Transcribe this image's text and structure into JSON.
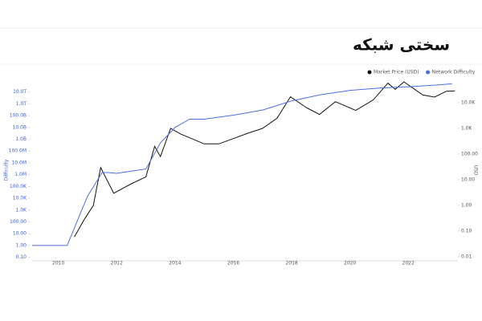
{
  "chart_data": {
    "type": "line",
    "title": "سختی شبکه",
    "ylabel": "Difficulty",
    "y2label": "USD",
    "xlim": [
      2009.1,
      2023.7
    ],
    "xticks": [
      2010,
      2012,
      2014,
      2016,
      2018,
      2020,
      2022
    ],
    "log_y": true,
    "log_y2": true,
    "ylim": [
      0.05,
      100000000000000
    ],
    "yticks": [
      {
        "value": 0.1,
        "label": "0.10"
      },
      {
        "value": 1,
        "label": "1.00"
      },
      {
        "value": 10,
        "label": "10.00"
      },
      {
        "value": 100,
        "label": "100.00"
      },
      {
        "value": 1000,
        "label": "1.0K"
      },
      {
        "value": 10000,
        "label": "10.0K"
      },
      {
        "value": 100000,
        "label": "100.0K"
      },
      {
        "value": 1000000,
        "label": "1.0M"
      },
      {
        "value": 10000000,
        "label": "10.0M"
      },
      {
        "value": 100000000,
        "label": "100.0M"
      },
      {
        "value": 1000000000,
        "label": "1.0B"
      },
      {
        "value": 10000000000,
        "label": "10.0B"
      },
      {
        "value": 100000000000,
        "label": "100.0B"
      },
      {
        "value": 1000000000000,
        "label": "1.0T"
      },
      {
        "value": 10000000000000,
        "label": "10.0T"
      }
    ],
    "y2lim": [
      0.007,
      75000
    ],
    "y2ticks": [
      0.01,
      {
        "value": 0.1,
        "label": "0.10"
      },
      {
        "value": 1,
        "label": "1.00"
      },
      {
        "value": 10,
        "label": "10.00"
      },
      {
        "value": 100,
        "label": "100.00"
      },
      {
        "value": 1000,
        "label": "1.0K"
      },
      {
        "value": 10000,
        "label": "10.0K"
      }
    ],
    "series": [
      {
        "name": "Market Price (USD)",
        "color": "#111111",
        "axis": "y2",
        "x": [
          2010.55,
          2010.9,
          2011.2,
          2011.45,
          2011.9,
          2012.5,
          2013.0,
          2013.3,
          2013.5,
          2013.85,
          2014.2,
          2015.0,
          2015.5,
          2016.0,
          2016.5,
          2017.0,
          2017.5,
          2017.96,
          2018.5,
          2018.95,
          2019.5,
          2020.2,
          2020.8,
          2021.3,
          2021.55,
          2021.85,
          2022.5,
          2022.9,
          2023.3,
          2023.6
        ],
        "values": [
          0.06,
          0.3,
          1,
          30,
          3,
          7,
          13,
          200,
          80,
          1000,
          600,
          250,
          250,
          400,
          650,
          1000,
          2500,
          17000,
          6500,
          3500,
          11000,
          5000,
          13000,
          58000,
          33000,
          65000,
          20000,
          16500,
          28000,
          29000
        ]
      },
      {
        "name": "Network Difficulty",
        "color": "#4a6fe0",
        "x": [
          2009.1,
          2010.3,
          2010.5,
          2010.8,
          2011.0,
          2011.5,
          2011.7,
          2012.0,
          2012.5,
          2013.0,
          2013.5,
          2014.0,
          2014.5,
          2015.0,
          2016.0,
          2017.0,
          2018.0,
          2019.0,
          2020.0,
          2021.0,
          2022.0,
          2023.0,
          2023.5
        ],
        "values": [
          1,
          1,
          15,
          1000,
          15000,
          1500000,
          1500000,
          1300000,
          2000000,
          3000000,
          500000000,
          10000000000,
          50000000000,
          50000000000,
          110000000000,
          300000000000,
          1800000000000,
          6000000000000,
          14000000000000,
          22000000000000,
          28000000000000,
          40000000000000,
          50000000000000
        ]
      }
    ]
  }
}
